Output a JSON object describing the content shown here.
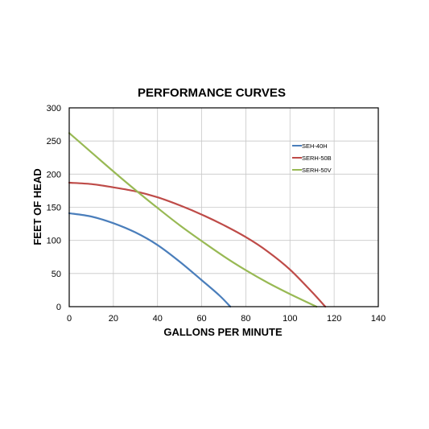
{
  "chart_data": {
    "type": "line",
    "title": "PERFORMANCE CURVES",
    "xlabel": "GALLONS PER MINUTE",
    "ylabel": "FEET OF HEAD",
    "xlim": [
      0,
      140
    ],
    "ylim": [
      0,
      300
    ],
    "xticks": [
      0,
      20,
      40,
      60,
      80,
      100,
      120,
      140
    ],
    "yticks": [
      0,
      50,
      100,
      150,
      200,
      250,
      300
    ],
    "grid": true,
    "legend_position": "top-right",
    "series": [
      {
        "name": "SEH-40H",
        "color": "#4a7ebb",
        "x": [
          0,
          10,
          20,
          30,
          40,
          50,
          60,
          68,
          73
        ],
        "y": [
          141,
          136,
          126,
          112,
          93,
          68,
          40,
          17,
          0
        ]
      },
      {
        "name": "SERH-50B",
        "color": "#be4b48",
        "x": [
          0,
          10,
          20,
          30,
          40,
          50,
          60,
          70,
          80,
          90,
          100,
          110,
          116
        ],
        "y": [
          187,
          185,
          180,
          174,
          165,
          153,
          139,
          123,
          105,
          83,
          56,
          22,
          0
        ]
      },
      {
        "name": "SERH-50V",
        "color": "#98b954",
        "x": [
          0,
          10,
          20,
          30,
          40,
          50,
          60,
          70,
          80,
          90,
          100,
          112
        ],
        "y": [
          262,
          233,
          204,
          176,
          149,
          123,
          99,
          76,
          55,
          36,
          19,
          0
        ]
      }
    ]
  }
}
